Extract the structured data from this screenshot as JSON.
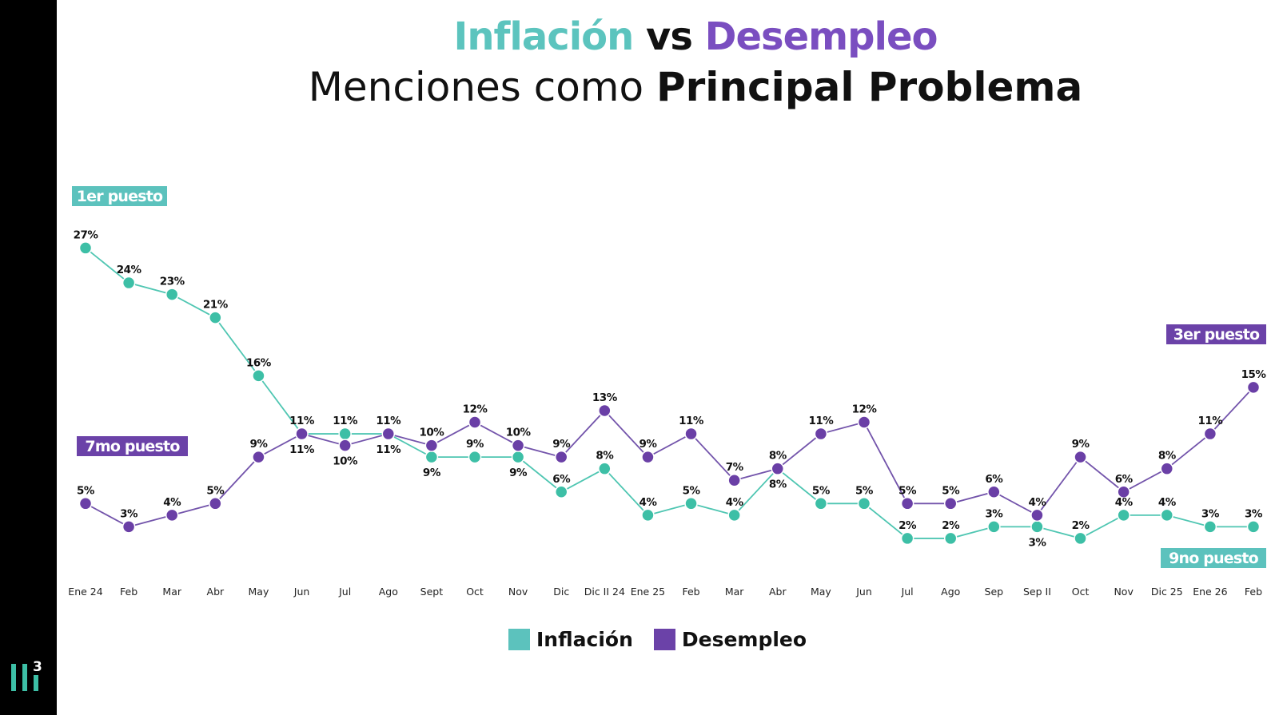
{
  "title": {
    "part1": "Inflación",
    "vs": "vs",
    "part2": "Desempleo",
    "line2_regular": "Menciones como",
    "line2_bold": "Principal Problema"
  },
  "colors": {
    "inflacion": "#3dbfa6",
    "desempleo": "#6a3fa6",
    "inflacion_badge": "#5cc2bd",
    "desempleo_badge": "#6b42a8",
    "title_teal": "#5cc4be",
    "title_purple": "#7a4ec0"
  },
  "logo": {
    "text": "3"
  },
  "chart_data": {
    "type": "line",
    "categories": [
      "Ene 24",
      "Feb",
      "Mar",
      "Abr",
      "May",
      "Jun",
      "Jul",
      "Ago",
      "Sept",
      "Oct",
      "Nov",
      "Dic",
      "Dic II 24",
      "Ene 25",
      "Feb",
      "Mar",
      "Abr",
      "May",
      "Jun",
      "Jul",
      "Ago",
      "Sep",
      "Sep II",
      "Oct",
      "Nov",
      "Dic 25",
      "Ene 26",
      "Feb"
    ],
    "series": [
      {
        "name": "Inflación",
        "values": [
          27,
          24,
          23,
          21,
          16,
          11,
          11,
          11,
          9,
          9,
          9,
          6,
          8,
          4,
          5,
          4,
          8,
          5,
          5,
          2,
          2,
          3,
          3,
          2,
          4,
          4,
          3,
          3
        ]
      },
      {
        "name": "Desempleo",
        "values": [
          5,
          3,
          4,
          5,
          9,
          11,
          10,
          11,
          10,
          12,
          10,
          9,
          13,
          9,
          11,
          7,
          8,
          11,
          12,
          5,
          5,
          6,
          4,
          9,
          6,
          8,
          11,
          15
        ]
      }
    ],
    "value_suffix": "%",
    "annotations": [
      {
        "series": "Inflación",
        "position": "start",
        "text": "1er puesto"
      },
      {
        "series": "Desempleo",
        "position": "start",
        "text": "7mo puesto"
      },
      {
        "series": "Desempleo",
        "position": "end",
        "text": "3er puesto"
      },
      {
        "series": "Inflación",
        "position": "end",
        "text": "9no puesto"
      }
    ],
    "legend": {
      "position": "bottom",
      "entries": [
        "Inflación",
        "Desempleo"
      ]
    },
    "grid": false
  }
}
